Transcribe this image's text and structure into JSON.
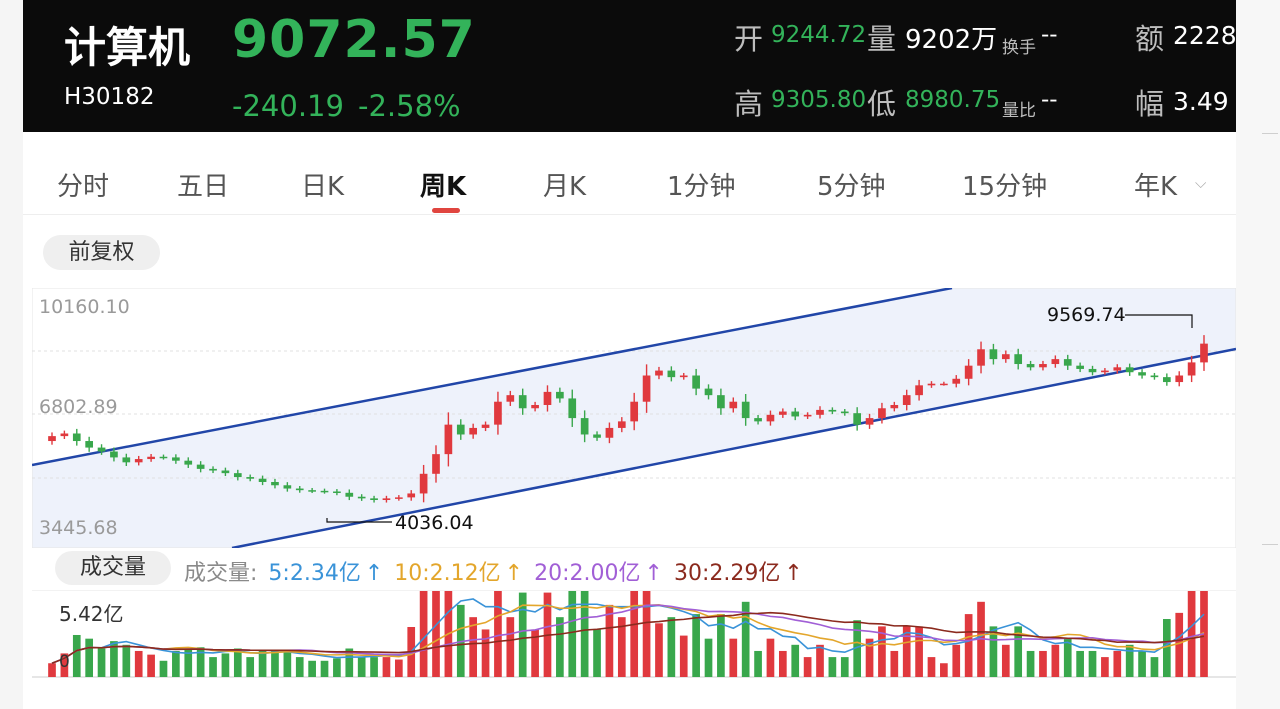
{
  "stock": {
    "name": "计算机",
    "code": "H30182",
    "price": "9072.57",
    "change": "-240.19",
    "change_pct": "-2.58%",
    "open_label": "开",
    "open": "9244.72",
    "volume_label": "量",
    "volume": "9202万",
    "turnover_label": "换手",
    "turnover": "--",
    "amount_label": "额",
    "amount": "2228",
    "high_label": "高",
    "high": "9305.80",
    "low_label": "低",
    "low": "8980.75",
    "vol_ratio_label": "量比",
    "vol_ratio": "--",
    "amplitude_label": "幅",
    "amplitude": "3.49"
  },
  "tabs": [
    {
      "label": "分时"
    },
    {
      "label": "五日"
    },
    {
      "label": "日K"
    },
    {
      "label": "周K",
      "active": true
    },
    {
      "label": "月K"
    },
    {
      "label": "1分钟"
    },
    {
      "label": "5分钟"
    },
    {
      "label": "15分钟"
    },
    {
      "label": "年K"
    }
  ],
  "adjust_button": "前复权",
  "volume_section": {
    "title": "成交量",
    "ma_prefix": "成交量:",
    "ma": [
      {
        "label": "5:2.34亿",
        "color": "#3a93d8"
      },
      {
        "label": "10:2.12亿",
        "color": "#e3a62c"
      },
      {
        "label": "20:2.00亿",
        "color": "#a15fd6"
      },
      {
        "label": "30:2.29亿",
        "color": "#8b2a1e"
      }
    ],
    "max_label": "5.42亿",
    "zero_label": "0"
  },
  "colors": {
    "up": "#e0393e",
    "down": "#39a74c",
    "channel": "#2146a8",
    "channel_fill": "#eef2fb"
  },
  "chart_data": {
    "type": "candlestick",
    "y_ticks": [
      "10160.10",
      "6802.89",
      "3445.68"
    ],
    "ylim": [
      3445.68,
      10160.1
    ],
    "high_annotation": "9569.74",
    "low_annotation": "4036.04",
    "closes": [
      6250,
      6330,
      6100,
      5900,
      5780,
      5600,
      5450,
      5550,
      5620,
      5600,
      5500,
      5380,
      5250,
      5200,
      5120,
      5000,
      4950,
      4850,
      4750,
      4650,
      4600,
      4580,
      4560,
      4520,
      4400,
      4350,
      4300,
      4350,
      4380,
      4500,
      5100,
      5700,
      6600,
      6300,
      6500,
      6600,
      7300,
      7500,
      7100,
      7200,
      7600,
      7400,
      6800,
      6300,
      6200,
      6500,
      6700,
      7300,
      8100,
      8250,
      8050,
      8100,
      7700,
      7500,
      7100,
      7300,
      6800,
      6700,
      6900,
      7000,
      6850,
      6900,
      7050,
      7000,
      6950,
      6600,
      6800,
      7100,
      7200,
      7500,
      7800,
      7850,
      7850,
      8000,
      8400,
      8900,
      8600,
      8750,
      8450,
      8350,
      8450,
      8600,
      8400,
      8300,
      8200,
      8250,
      8350,
      8200,
      8100,
      8050,
      7900,
      8100,
      8500,
      9072.57
    ]
  }
}
